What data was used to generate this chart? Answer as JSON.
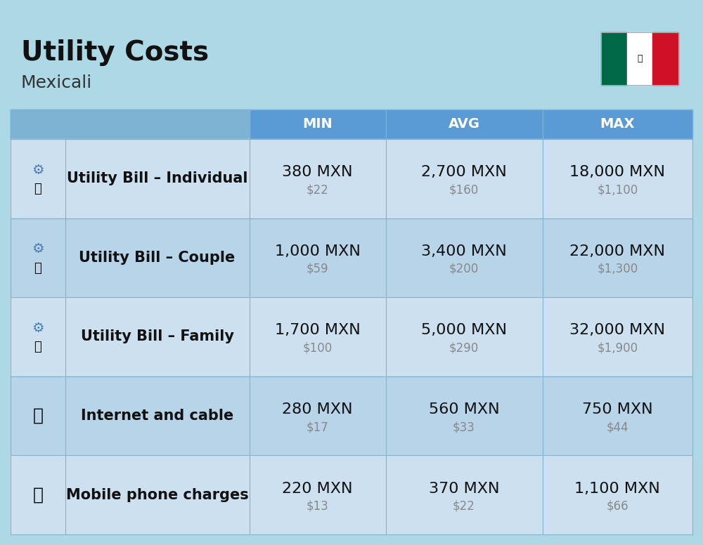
{
  "title": "Utility Costs",
  "subtitle": "Mexicali",
  "background_color": "#add8e6",
  "header_bg_color": "#5b9bd5",
  "header_text_color": "#ffffff",
  "row_bg_color_light": "#cce0f0",
  "row_bg_color_dark": "#b8d4e8",
  "divider_color": "#7fb3d3",
  "col_headers": [
    "MIN",
    "AVG",
    "MAX"
  ],
  "rows": [
    {
      "label": "Utility Bill – Individual",
      "icon": "utility_individual",
      "min_mxn": "380 MXN",
      "min_usd": "$22",
      "avg_mxn": "2,700 MXN",
      "avg_usd": "$160",
      "max_mxn": "18,000 MXN",
      "max_usd": "$1,100"
    },
    {
      "label": "Utility Bill – Couple",
      "icon": "utility_couple",
      "min_mxn": "1,000 MXN",
      "min_usd": "$59",
      "avg_mxn": "3,400 MXN",
      "avg_usd": "$200",
      "max_mxn": "22,000 MXN",
      "max_usd": "$1,300"
    },
    {
      "label": "Utility Bill – Family",
      "icon": "utility_family",
      "min_mxn": "1,700 MXN",
      "min_usd": "$100",
      "avg_mxn": "5,000 MXN",
      "avg_usd": "$290",
      "max_mxn": "32,000 MXN",
      "max_usd": "$1,900"
    },
    {
      "label": "Internet and cable",
      "icon": "internet",
      "min_mxn": "280 MXN",
      "min_usd": "$17",
      "avg_mxn": "560 MXN",
      "avg_usd": "$33",
      "max_mxn": "750 MXN",
      "max_usd": "$44"
    },
    {
      "label": "Mobile phone charges",
      "icon": "mobile",
      "min_mxn": "220 MXN",
      "min_usd": "$13",
      "avg_mxn": "370 MXN",
      "avg_usd": "$22",
      "max_mxn": "1,100 MXN",
      "max_usd": "$66"
    }
  ],
  "title_fontsize": 28,
  "subtitle_fontsize": 18,
  "header_fontsize": 14,
  "cell_mxn_fontsize": 16,
  "cell_usd_fontsize": 12,
  "label_fontsize": 15,
  "flag_colors": [
    "#006847",
    "#ffffff",
    "#ce1126"
  ],
  "usd_color": "#888888"
}
